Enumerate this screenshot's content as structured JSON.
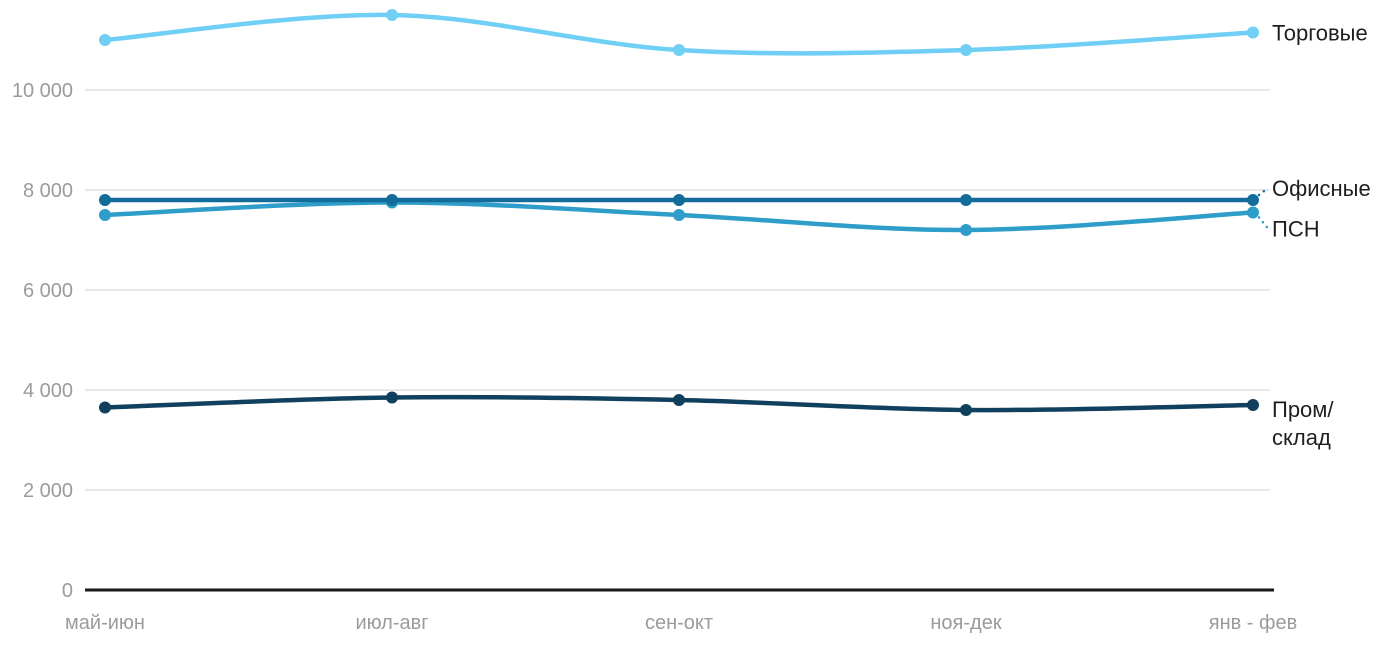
{
  "chart_data": {
    "type": "line",
    "title": "",
    "xlabel": "",
    "ylabel": "",
    "categories": [
      "май-июн",
      "июл-авг",
      "сен-окт",
      "ноя-дек",
      "янв - фев"
    ],
    "series": [
      {
        "id": "torgovye",
        "name": "Торговые",
        "color": "#6FCFF5",
        "values": [
          11000,
          11500,
          10800,
          10800,
          11150
        ],
        "label_lines": [
          "Торговые"
        ],
        "label_offset": 0,
        "connector": false
      },
      {
        "id": "psn",
        "name": "ПСН",
        "color": "#2F9DC9",
        "values": [
          7500,
          7750,
          7500,
          7200,
          7550
        ],
        "label_lines": [
          "ПСН"
        ],
        "label_offset": 16,
        "connector": true
      },
      {
        "id": "ofisnye",
        "name": "Офисные",
        "color": "#116C99",
        "values": [
          7800,
          7800,
          7800,
          7800,
          7800
        ],
        "label_lines": [
          "Офисные"
        ],
        "label_offset": -12,
        "connector": true
      },
      {
        "id": "prom-sklad",
        "name": "Пром/склад",
        "color": "#113F5E",
        "values": [
          3650,
          3850,
          3800,
          3600,
          3700
        ],
        "label_lines": [
          "Пром/",
          "склад"
        ],
        "label_offset": 4,
        "connector": false
      }
    ],
    "yticks": [
      {
        "value": 0,
        "label": "0"
      },
      {
        "value": 2000,
        "label": "2 000"
      },
      {
        "value": 4000,
        "label": "4 000"
      },
      {
        "value": 6000,
        "label": "6 000"
      },
      {
        "value": 8000,
        "label": "8 000"
      },
      {
        "value": 10000,
        "label": "10 000"
      }
    ],
    "ylim": [
      0,
      12000
    ],
    "grid": true,
    "legend_position": "right-inline-labels",
    "smooth": true
  },
  "colors": {
    "background": "#ffffff",
    "axis_line": "#1a1a1a",
    "gridline": "#e8e8e8",
    "tick_label": "#9b9b9b",
    "series_label": "#1f1f1f"
  }
}
